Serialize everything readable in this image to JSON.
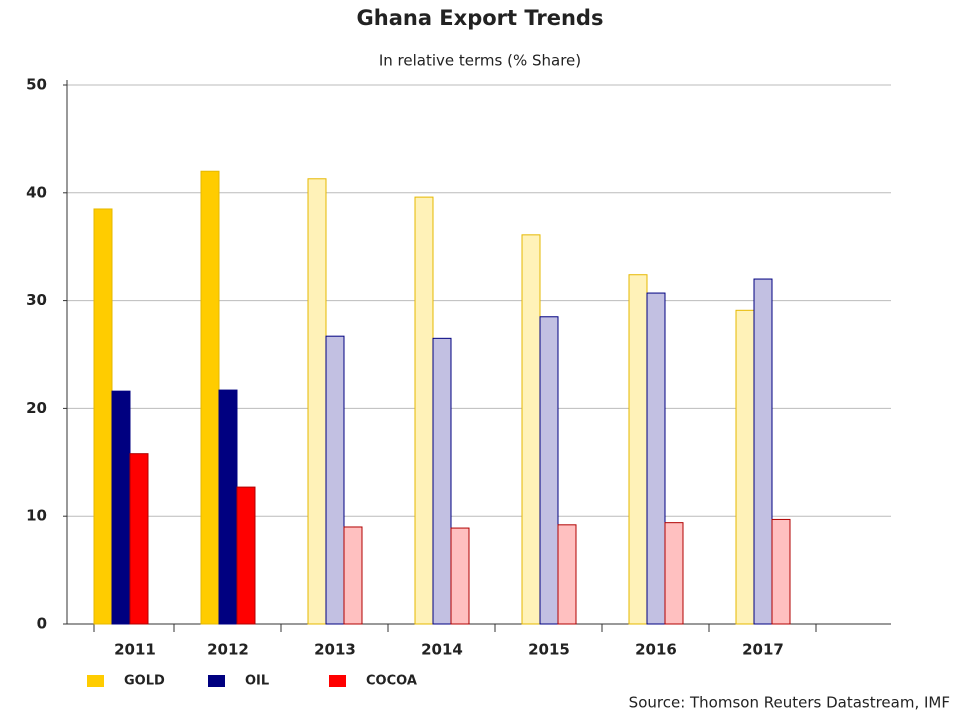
{
  "chart_data": {
    "type": "bar",
    "title": "Ghana Export Trends",
    "subtitle": "In relative terms (% Share)",
    "categories": [
      "2011",
      "2012",
      "2013",
      "2014",
      "2015",
      "2016",
      "2017"
    ],
    "series": [
      {
        "name": "GOLD",
        "color": "#ffcc00",
        "edge_color": "#e6b800",
        "colors": [
          "#ffcc00",
          "#ffcc00",
          "#fff2b8",
          "#fff2b8",
          "#fff2b8",
          "#fff2b8",
          "#fff2b8"
        ],
        "values": [
          38.5,
          42,
          41.3,
          39.6,
          36.1,
          32.4,
          29.1
        ]
      },
      {
        "name": "OIL",
        "color": "#000080",
        "edge_color": "#000080",
        "colors": [
          "#000080",
          "#000080",
          "#c2c0e2",
          "#c2c0e2",
          "#c2c0e2",
          "#c2c0e2",
          "#c2c0e2"
        ],
        "values": [
          21.6,
          21.7,
          26.7,
          26.5,
          28.5,
          30.7,
          32
        ]
      },
      {
        "name": "COCOA",
        "color": "#ff0000",
        "edge_color": "#b00000",
        "colors": [
          "#ff0000",
          "#ff0000",
          "#ffc0c0",
          "#ffc0c0",
          "#ffc0c0",
          "#ffc0c0",
          "#ffc0c0"
        ],
        "values": [
          15.8,
          12.7,
          9.0,
          8.9,
          9.2,
          9.4,
          9.7
        ]
      }
    ],
    "ylim": [
      0,
      50
    ],
    "yticks": [
      0,
      10,
      20,
      30,
      40,
      50
    ],
    "grid": true,
    "legend": "bottom-left",
    "source": "Source: Thomson Reuters Datastream, IMF"
  }
}
